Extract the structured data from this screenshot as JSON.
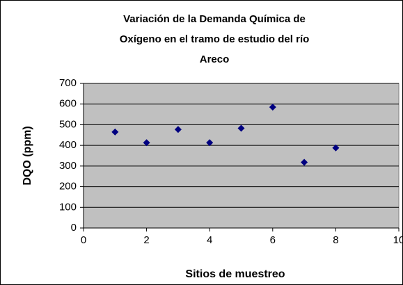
{
  "chart_data": {
    "type": "scatter",
    "title": [
      "Variación de la Demanda Química de",
      "Oxígeno en el tramo de estudio del río",
      "Areco"
    ],
    "x_label": "Sitios de muestreo",
    "y_label": "DQO (ppm)",
    "series": [
      {
        "name": "DQO",
        "color": "#000080",
        "x": [
          1,
          2,
          3,
          4,
          5,
          6,
          7,
          8
        ],
        "values": [
          465,
          413,
          477,
          413,
          483,
          585,
          318,
          388
        ]
      }
    ],
    "xlim": [
      0,
      10
    ],
    "xticks": [
      0,
      2,
      4,
      6,
      8,
      10
    ],
    "ylim": [
      0,
      700
    ],
    "yticks": [
      0,
      100,
      200,
      300,
      400,
      500,
      600,
      700
    ],
    "grid": true,
    "plot_background": "#c0c0c0"
  }
}
